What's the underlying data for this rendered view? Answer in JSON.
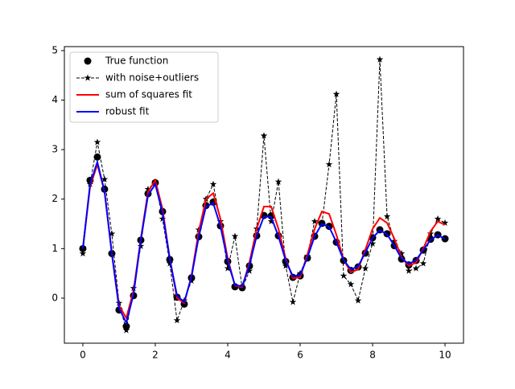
{
  "chart_data": {
    "type": "line",
    "x": [
      0,
      0.2,
      0.4,
      0.6,
      0.8,
      1,
      1.2,
      1.4,
      1.6,
      1.8,
      2,
      2.2,
      2.4,
      2.6,
      2.8,
      3,
      3.2,
      3.4,
      3.6,
      3.8,
      4,
      4.2,
      4.4,
      4.6,
      4.8,
      5,
      5.2,
      5.4,
      5.6,
      5.8,
      6,
      6.2,
      6.4,
      6.6,
      6.8,
      7,
      7.2,
      7.4,
      7.6,
      7.8,
      8,
      8.2,
      8.4,
      8.6,
      8.8,
      9,
      9.2,
      9.4,
      9.6,
      9.8,
      10
    ],
    "series": [
      {
        "name": "True function",
        "color": "#000000",
        "marker": "circle",
        "line": "none",
        "values": [
          1.0,
          2.38,
          2.85,
          2.2,
          0.9,
          -0.24,
          -0.57,
          0.05,
          1.17,
          2.11,
          2.33,
          1.75,
          0.78,
          0.02,
          -0.12,
          0.41,
          1.24,
          1.87,
          1.94,
          1.46,
          0.74,
          0.23,
          0.21,
          0.65,
          1.26,
          1.67,
          1.66,
          1.26,
          0.74,
          0.42,
          0.45,
          0.81,
          1.25,
          1.51,
          1.45,
          1.13,
          0.76,
          0.56,
          0.63,
          0.91,
          1.22,
          1.38,
          1.3,
          1.06,
          0.79,
          0.67,
          0.76,
          0.97,
          1.19,
          1.28,
          1.2
        ]
      },
      {
        "name": "with noise+outliers",
        "color": "#000000",
        "marker": "star",
        "line": "dashed",
        "values": [
          0.9,
          2.3,
          3.15,
          2.4,
          1.3,
          -0.1,
          -0.65,
          0.2,
          1.05,
          2.2,
          2.35,
          1.6,
          0.7,
          -0.45,
          -0.05,
          0.35,
          1.38,
          2.0,
          2.3,
          1.55,
          0.6,
          1.25,
          0.2,
          0.55,
          1.4,
          3.28,
          1.55,
          2.35,
          0.65,
          -0.08,
          0.5,
          0.85,
          1.55,
          1.5,
          2.7,
          4.12,
          0.45,
          0.28,
          -0.05,
          0.6,
          1.1,
          4.82,
          1.65,
          1.15,
          0.9,
          0.55,
          0.6,
          0.7,
          1.3,
          1.6,
          1.52
        ]
      },
      {
        "name": "sum of squares fit",
        "color": "#ff0000",
        "marker": "none",
        "line": "solid",
        "values": [
          1.0,
          2.25,
          2.7,
          2.15,
          0.92,
          -0.15,
          -0.4,
          0.15,
          1.2,
          2.15,
          2.38,
          1.8,
          0.8,
          0.0,
          -0.1,
          0.45,
          1.35,
          2.0,
          2.12,
          1.6,
          0.8,
          0.25,
          0.22,
          0.72,
          1.4,
          1.85,
          1.85,
          1.4,
          0.8,
          0.4,
          0.42,
          0.88,
          1.4,
          1.75,
          1.7,
          1.28,
          0.78,
          0.52,
          0.58,
          0.98,
          1.4,
          1.62,
          1.52,
          1.2,
          0.82,
          0.65,
          0.72,
          1.0,
          1.35,
          1.55,
          1.48
        ]
      },
      {
        "name": "robust fit",
        "color": "#0000ff",
        "marker": "none",
        "line": "solid",
        "values": [
          1.0,
          2.3,
          2.75,
          2.15,
          0.9,
          -0.2,
          -0.5,
          0.08,
          1.17,
          2.08,
          2.3,
          1.73,
          0.79,
          0.05,
          -0.08,
          0.43,
          1.24,
          1.85,
          1.92,
          1.45,
          0.75,
          0.26,
          0.24,
          0.67,
          1.26,
          1.65,
          1.64,
          1.25,
          0.76,
          0.44,
          0.47,
          0.82,
          1.25,
          1.5,
          1.44,
          1.13,
          0.77,
          0.58,
          0.64,
          0.92,
          1.22,
          1.37,
          1.29,
          1.06,
          0.8,
          0.69,
          0.77,
          0.97,
          1.18,
          1.27,
          1.2
        ]
      }
    ],
    "xlim": [
      -0.51,
      10.51
    ],
    "ylim": [
      -0.91,
      5.08
    ],
    "xticks": [
      0,
      2,
      4,
      6,
      8,
      10
    ],
    "yticks": [
      0,
      1,
      2,
      3,
      4,
      5
    ],
    "legend": "upper left"
  }
}
